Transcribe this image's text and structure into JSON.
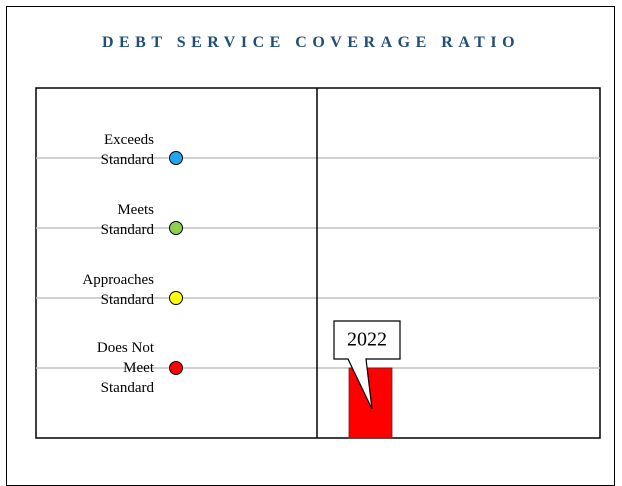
{
  "chart_data": {
    "type": "bar",
    "title": "DEBT SERVICE COVERAGE RATIO",
    "categories": [
      "2022"
    ],
    "values": [
      1
    ],
    "color": "#ff0000",
    "ylim": [
      0,
      5
    ],
    "yticks": [
      {
        "value": 1,
        "label": "Does Not Meet Standard"
      },
      {
        "value": 2,
        "label": "Approaches Standard"
      },
      {
        "value": 3,
        "label": "Meets Standard"
      },
      {
        "value": 4,
        "label": "Exceeds Standard"
      }
    ],
    "tick_colors": [
      "#ff0000",
      "#ffff00",
      "#8fce4f",
      "#1ea7f0"
    ],
    "grid": true
  }
}
